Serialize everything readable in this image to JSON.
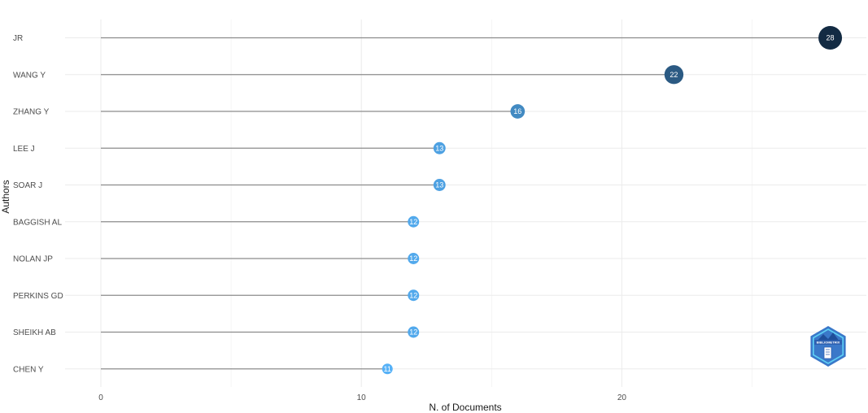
{
  "chart_data": {
    "type": "lollipop",
    "categories": [
      "JR",
      "WANG Y",
      "ZHANG Y",
      "LEE J",
      "SOAR J",
      "BAGGISH AL",
      "NOLAN JP",
      "PERKINS GD",
      "SHEIKH AB",
      "CHEN Y"
    ],
    "values": [
      28,
      22,
      16,
      13,
      13,
      12,
      12,
      12,
      12,
      11
    ],
    "xlabel": "N. of Documents",
    "ylabel": "Authors",
    "xlim": [
      0,
      29
    ],
    "x_ticks": [
      0,
      10,
      20
    ],
    "grid": true,
    "color_scale": {
      "low": "#56B1F7",
      "high": "#132B43"
    }
  },
  "logo": {
    "text": "BIBLIOMETRIX"
  }
}
